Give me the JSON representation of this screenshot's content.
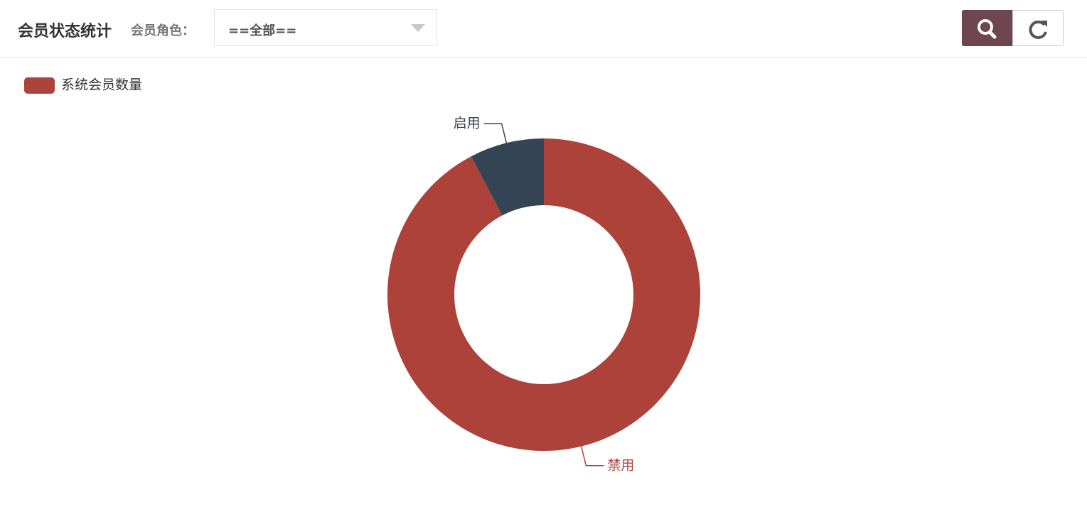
{
  "header": {
    "title": "会员状态统计",
    "filter_label": "会员角色：",
    "select_value": "==全部=="
  },
  "chart_data": {
    "type": "pie",
    "series_name": "系统会员数量",
    "categories": [
      "禁用",
      "启用"
    ],
    "values": [
      12,
      1
    ],
    "colors": [
      "#ac4239",
      "#344454"
    ],
    "legend": "top-left"
  }
}
